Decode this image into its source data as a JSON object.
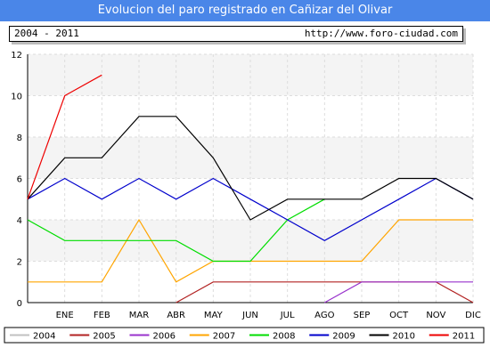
{
  "header": {
    "title": "Evolucion del paro registrado en Cañizar del Olivar",
    "period": "2004 - 2011",
    "url": "http://www.foro-ciudad.com"
  },
  "chart_data": {
    "type": "line",
    "categories": [
      "",
      "ENE",
      "FEB",
      "MAR",
      "ABR",
      "MAY",
      "JUN",
      "JUL",
      "AGO",
      "SEP",
      "OCT",
      "NOV",
      "DIC"
    ],
    "ylim": [
      0,
      12
    ],
    "yticks": [
      0,
      2,
      4,
      6,
      8,
      10,
      12
    ],
    "grid": true,
    "legend_position": "bottom",
    "series": [
      {
        "name": "2004",
        "color": "#c0c0c0",
        "values": [
          null,
          null,
          null,
          null,
          null,
          null,
          null,
          null,
          null,
          null,
          null,
          null,
          null
        ]
      },
      {
        "name": "2005",
        "color": "#b22222",
        "values": [
          null,
          null,
          null,
          null,
          0,
          1,
          1,
          1,
          1,
          1,
          1,
          1,
          0
        ]
      },
      {
        "name": "2006",
        "color": "#9932cc",
        "values": [
          null,
          null,
          null,
          null,
          null,
          null,
          null,
          null,
          0,
          1,
          1,
          1,
          1
        ]
      },
      {
        "name": "2007",
        "color": "#ffa500",
        "values": [
          1,
          1,
          1,
          4,
          1,
          2,
          2,
          2,
          2,
          2,
          4,
          4,
          4
        ]
      },
      {
        "name": "2008",
        "color": "#00dd00",
        "values": [
          4,
          3,
          3,
          3,
          3,
          2,
          2,
          4,
          5,
          null,
          null,
          null,
          null
        ]
      },
      {
        "name": "2009",
        "color": "#0000cc",
        "values": [
          5,
          6,
          5,
          6,
          5,
          6,
          5,
          4,
          3,
          4,
          5,
          6,
          5
        ]
      },
      {
        "name": "2010",
        "color": "#000000",
        "values": [
          5,
          7,
          7,
          9,
          9,
          7,
          4,
          5,
          5,
          5,
          6,
          6,
          5
        ]
      },
      {
        "name": "2011",
        "color": "#ee0000",
        "values": [
          5,
          10,
          11,
          null,
          null,
          null,
          null,
          null,
          null,
          null,
          null,
          null,
          null
        ]
      }
    ]
  }
}
